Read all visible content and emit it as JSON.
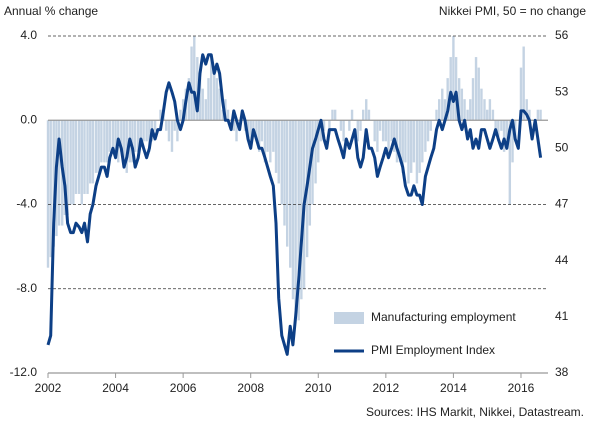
{
  "chart_data": {
    "type": "bar-line",
    "y_label": "Annual % change",
    "y2_label": "Nikkei PMI, 50 = no change",
    "source": "Sources: IHS Markit, Nikkei, Datastream.",
    "xlim": [
      2002,
      2016.8
    ],
    "xticks": [
      2002,
      2004,
      2006,
      2008,
      2010,
      2012,
      2014,
      2016
    ],
    "ylim": [
      -12,
      4
    ],
    "yticks": [
      {
        "value": 4,
        "label": "4.0"
      },
      {
        "value": 0,
        "label": "0.0"
      },
      {
        "value": -4,
        "label": "-4.0"
      },
      {
        "value": -8,
        "label": "-8.0"
      },
      {
        "value": -12,
        "label": "-12.0"
      }
    ],
    "y2lim": [
      38,
      56
    ],
    "y2ticks": [
      38,
      41,
      44,
      47,
      50,
      53,
      56
    ],
    "grid": true,
    "x": [
      2002.0,
      2002.08,
      2002.17,
      2002.25,
      2002.33,
      2002.42,
      2002.5,
      2002.58,
      2002.67,
      2002.75,
      2002.83,
      2002.92,
      2003.0,
      2003.08,
      2003.17,
      2003.25,
      2003.33,
      2003.42,
      2003.5,
      2003.58,
      2003.67,
      2003.75,
      2003.83,
      2003.92,
      2004.0,
      2004.08,
      2004.17,
      2004.25,
      2004.33,
      2004.42,
      2004.5,
      2004.58,
      2004.67,
      2004.75,
      2004.83,
      2004.92,
      2005.0,
      2005.08,
      2005.17,
      2005.25,
      2005.33,
      2005.42,
      2005.5,
      2005.58,
      2005.67,
      2005.75,
      2005.83,
      2005.92,
      2006.0,
      2006.08,
      2006.17,
      2006.25,
      2006.33,
      2006.42,
      2006.5,
      2006.58,
      2006.67,
      2006.75,
      2006.83,
      2006.92,
      2007.0,
      2007.08,
      2007.17,
      2007.25,
      2007.33,
      2007.42,
      2007.5,
      2007.58,
      2007.67,
      2007.75,
      2007.83,
      2007.92,
      2008.0,
      2008.08,
      2008.17,
      2008.25,
      2008.33,
      2008.42,
      2008.5,
      2008.58,
      2008.67,
      2008.75,
      2008.83,
      2008.92,
      2009.0,
      2009.08,
      2009.17,
      2009.25,
      2009.33,
      2009.42,
      2009.5,
      2009.58,
      2009.67,
      2009.75,
      2009.83,
      2009.92,
      2010.0,
      2010.08,
      2010.17,
      2010.25,
      2010.33,
      2010.42,
      2010.5,
      2010.58,
      2010.67,
      2010.75,
      2010.83,
      2010.92,
      2011.0,
      2011.08,
      2011.17,
      2011.25,
      2011.33,
      2011.42,
      2011.5,
      2011.58,
      2011.67,
      2011.75,
      2011.83,
      2011.92,
      2012.0,
      2012.08,
      2012.17,
      2012.25,
      2012.33,
      2012.42,
      2012.5,
      2012.58,
      2012.67,
      2012.75,
      2012.83,
      2012.92,
      2013.0,
      2013.08,
      2013.17,
      2013.25,
      2013.33,
      2013.42,
      2013.5,
      2013.58,
      2013.67,
      2013.75,
      2013.83,
      2013.92,
      2014.0,
      2014.08,
      2014.17,
      2014.25,
      2014.33,
      2014.42,
      2014.5,
      2014.58,
      2014.67,
      2014.75,
      2014.83,
      2014.92,
      2015.0,
      2015.08,
      2015.17,
      2015.25,
      2015.33,
      2015.42,
      2015.5,
      2015.58,
      2015.67,
      2015.75,
      2015.83,
      2015.92,
      2016.0,
      2016.08,
      2016.17,
      2016.25,
      2016.33,
      2016.42,
      2016.5,
      2016.58
    ],
    "series": [
      {
        "name": "Manufacturing employment",
        "type": "bar",
        "color": "#c4d3e3",
        "values": [
          -7,
          -6.5,
          -6,
          -5.5,
          -5,
          -5,
          -4.5,
          -4.5,
          -4,
          -4,
          -3.5,
          -3.5,
          -4,
          -3.5,
          -3.5,
          -3,
          -3,
          -2.5,
          -2.5,
          -2,
          -2,
          -2,
          -1.5,
          -1.5,
          -1.5,
          -2,
          -1.5,
          -2,
          -2.5,
          -2,
          -2,
          -1.5,
          -1.5,
          -1,
          -1,
          -1,
          -1.5,
          -1,
          -0.5,
          0,
          0.5,
          0.5,
          -0.5,
          -1,
          -1.5,
          -0.5,
          -1,
          0.5,
          1,
          1.5,
          2,
          3.5,
          4,
          3,
          2,
          1.5,
          1,
          2,
          3,
          2.5,
          2,
          1.5,
          0.5,
          1,
          0.5,
          0,
          -0.5,
          -1,
          0,
          0.5,
          -0.5,
          -1,
          -1,
          -0.5,
          -1,
          -1.5,
          -1,
          -2,
          -1.5,
          -2,
          -1.5,
          -2.5,
          -3,
          -4,
          -5,
          -6,
          -7,
          -8.5,
          -9,
          -9.5,
          -8.5,
          -8,
          -6.5,
          -5,
          -4,
          -3,
          -2,
          -1,
          -0.5,
          0,
          -0.5,
          0.5,
          0.5,
          0,
          -0.5,
          -1,
          0,
          -0.5,
          0.5,
          0,
          -1,
          -0.5,
          0.5,
          1,
          0.5,
          0,
          -1,
          -1.5,
          -0.5,
          -1,
          -1,
          -1.5,
          -1,
          -1.5,
          -2,
          -2,
          -2.5,
          -2,
          -3,
          -2.5,
          -2,
          -3,
          -2.5,
          -2,
          -1.5,
          -1,
          -0.5,
          0,
          0.5,
          1,
          1.5,
          1,
          2,
          3,
          4,
          3,
          2,
          1.5,
          1,
          0.5,
          1,
          2,
          3,
          2.5,
          1.5,
          1,
          0.5,
          1,
          0.5,
          -0.5,
          -1,
          -0.5,
          -1.5,
          -1,
          -4,
          -2,
          -1,
          0,
          2.5,
          3.5,
          1,
          0.5,
          0,
          -0.5,
          0.5,
          0.5
        ]
      },
      {
        "name": "PMI Employment Index",
        "type": "line",
        "axis": "y2",
        "color": "#0d3f86",
        "values": [
          39.5,
          40,
          46,
          49,
          50.5,
          49,
          48,
          46,
          45.5,
          45.5,
          46,
          45.8,
          45.5,
          46,
          45,
          46.5,
          47,
          48,
          48.5,
          49,
          49,
          48.5,
          49.5,
          50,
          49.5,
          50.5,
          50,
          49,
          49.5,
          50.5,
          50,
          49,
          49.5,
          50.5,
          50,
          49.5,
          50,
          51,
          50.5,
          51,
          51,
          52,
          53,
          53.5,
          53,
          52.5,
          51.5,
          51,
          51.5,
          52.5,
          53.5,
          53,
          53,
          52,
          54,
          55,
          54.5,
          55,
          55,
          54,
          54.5,
          54,
          52.5,
          51.5,
          51.5,
          51,
          52,
          51.5,
          51,
          52,
          51.5,
          50.5,
          50,
          51,
          50.5,
          50,
          50,
          49.5,
          49,
          48.5,
          48,
          46,
          42,
          40,
          39.5,
          39,
          40.5,
          39.5,
          41,
          43,
          45,
          47,
          48,
          49,
          50,
          50.5,
          51,
          51.5,
          50.5,
          50,
          51,
          51,
          51,
          50.5,
          50,
          49.5,
          50.5,
          50,
          50.5,
          51,
          49.5,
          49,
          49.5,
          51,
          50,
          50,
          49.5,
          48.5,
          49,
          49.5,
          50,
          49.5,
          50,
          50.5,
          50,
          49.5,
          49,
          48,
          47.5,
          47.5,
          48,
          47.5,
          47.5,
          47,
          48.5,
          49,
          49.5,
          50,
          51,
          51.5,
          51,
          51.5,
          52,
          53,
          52.5,
          53,
          51.5,
          51,
          51.5,
          50.5,
          51,
          50,
          50.5,
          50,
          51,
          51,
          50.5,
          50,
          50.5,
          51,
          50.5,
          50,
          50.5,
          50,
          51,
          51.5,
          50.5,
          50,
          52,
          52,
          51.8,
          51.5,
          50.5,
          51.5,
          50.5,
          49.5
        ]
      }
    ]
  }
}
